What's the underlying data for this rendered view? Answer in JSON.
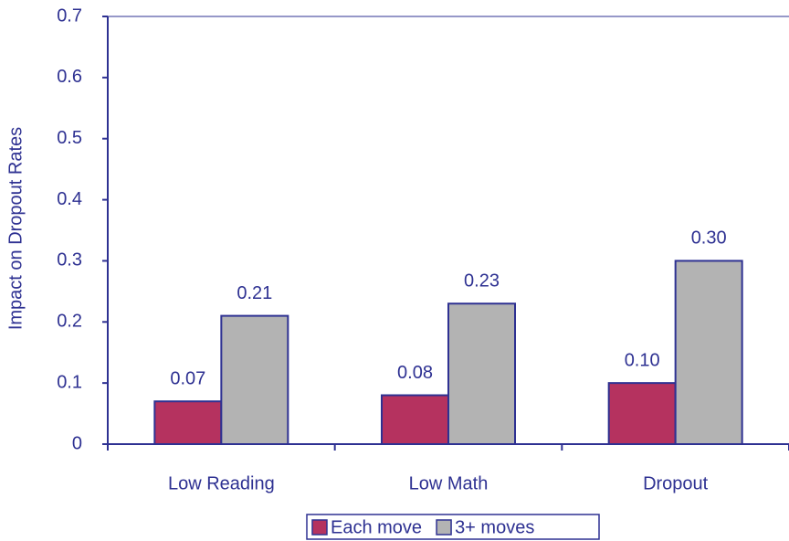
{
  "chart_data": {
    "type": "bar",
    "y_label": "Impact on Dropout Rates",
    "categories": [
      "Low Reading",
      "Low Math",
      "Dropout"
    ],
    "series": [
      {
        "name": "Each move",
        "color": "#b5325f",
        "values": [
          0.07,
          0.08,
          0.1
        ],
        "value_labels": [
          "0.07",
          "0.08",
          "0.10"
        ]
      },
      {
        "name": "3+ moves",
        "color": "#b3b3b3",
        "values": [
          0.21,
          0.23,
          0.3
        ],
        "value_labels": [
          "0.21",
          "0.23",
          "0.30"
        ]
      }
    ],
    "ylim": [
      0,
      0.7
    ],
    "yticks": [
      0,
      0.1,
      0.2,
      0.3,
      0.4,
      0.5,
      0.6,
      0.7
    ],
    "grid": false,
    "legend": "bottom"
  }
}
